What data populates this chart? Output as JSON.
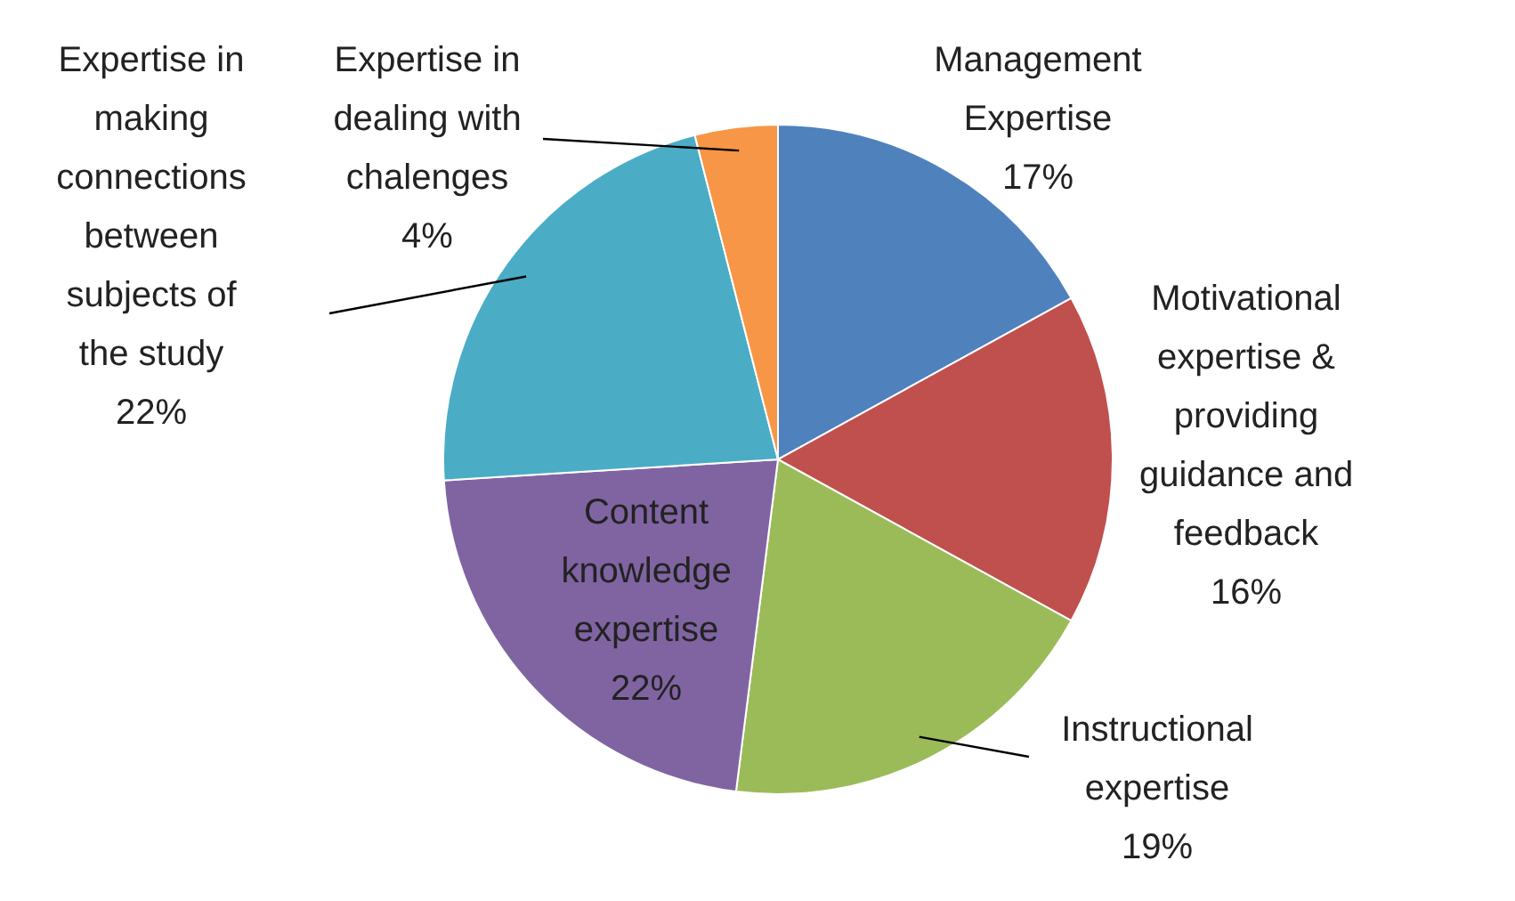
{
  "chart_data": {
    "type": "pie",
    "categories": [
      "Management\nExpertise",
      "Motivational\nexpertise &\nproviding\nguidance and\nfeedback",
      "Instructional\nexpertise",
      "Content\nknowledge\nexpertise",
      "Expertise in\nmaking\nconnections\nbetween\nsubjects of\nthe study",
      "Expertise in\ndealing with\nchalenges"
    ],
    "values": [
      17,
      16,
      19,
      22,
      22,
      4
    ],
    "colors": [
      "#4f81bd",
      "#c0504d",
      "#9bbb59",
      "#8064a2",
      "#4bacc6",
      "#f79646"
    ],
    "value_labels": [
      "17%",
      "16%",
      "19%",
      "22%",
      "22%",
      "4%"
    ]
  }
}
